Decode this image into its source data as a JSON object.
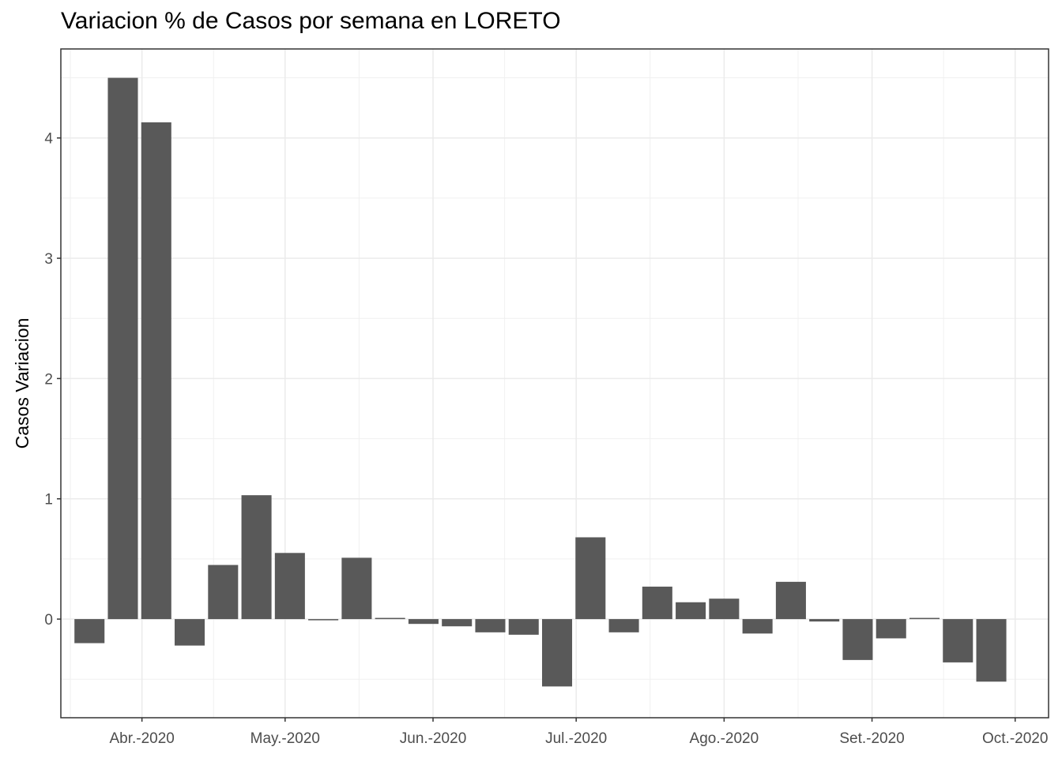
{
  "chart_data": {
    "type": "bar",
    "title": "Variacion % de Casos por semana en LORETO",
    "xlabel": "",
    "ylabel": "Casos Variacion",
    "x_tick_labels": [
      "Abr.-2020",
      "May.-2020",
      "Jun.-2020",
      "Jul.-2020",
      "Ago.-2020",
      "Set.-2020",
      "Oct.-2020"
    ],
    "x_tick_dates": [
      "2020-04-01",
      "2020-05-01",
      "2020-06-01",
      "2020-07-01",
      "2020-08-01",
      "2020-09-01",
      "2020-10-01"
    ],
    "xlim": [
      "2020-03-15",
      "2020-10-08"
    ],
    "y_ticks": [
      0,
      1,
      2,
      3,
      4
    ],
    "ylim": [
      -0.82,
      4.74
    ],
    "grid": true,
    "legend": "none",
    "bar_color": "#595959",
    "bars": [
      {
        "x": "2020-03-21",
        "value": -0.2
      },
      {
        "x": "2020-03-28",
        "value": 4.5
      },
      {
        "x": "2020-04-04",
        "value": 4.13
      },
      {
        "x": "2020-04-11",
        "value": -0.22
      },
      {
        "x": "2020-04-18",
        "value": 0.45
      },
      {
        "x": "2020-04-25",
        "value": 1.03
      },
      {
        "x": "2020-05-02",
        "value": 0.55
      },
      {
        "x": "2020-05-09",
        "value": -0.01
      },
      {
        "x": "2020-05-16",
        "value": 0.51
      },
      {
        "x": "2020-05-23",
        "value": 0.01
      },
      {
        "x": "2020-05-30",
        "value": -0.04
      },
      {
        "x": "2020-06-06",
        "value": -0.06
      },
      {
        "x": "2020-06-13",
        "value": -0.11
      },
      {
        "x": "2020-06-20",
        "value": -0.13
      },
      {
        "x": "2020-06-27",
        "value": -0.56
      },
      {
        "x": "2020-07-04",
        "value": 0.68
      },
      {
        "x": "2020-07-11",
        "value": -0.11
      },
      {
        "x": "2020-07-18",
        "value": 0.27
      },
      {
        "x": "2020-07-25",
        "value": 0.14
      },
      {
        "x": "2020-08-01",
        "value": 0.17
      },
      {
        "x": "2020-08-08",
        "value": -0.12
      },
      {
        "x": "2020-08-15",
        "value": 0.31
      },
      {
        "x": "2020-08-22",
        "value": -0.02
      },
      {
        "x": "2020-08-29",
        "value": -0.34
      },
      {
        "x": "2020-09-05",
        "value": -0.16
      },
      {
        "x": "2020-09-12",
        "value": 0.01
      },
      {
        "x": "2020-09-19",
        "value": -0.36
      },
      {
        "x": "2020-09-26",
        "value": -0.52
      }
    ]
  }
}
